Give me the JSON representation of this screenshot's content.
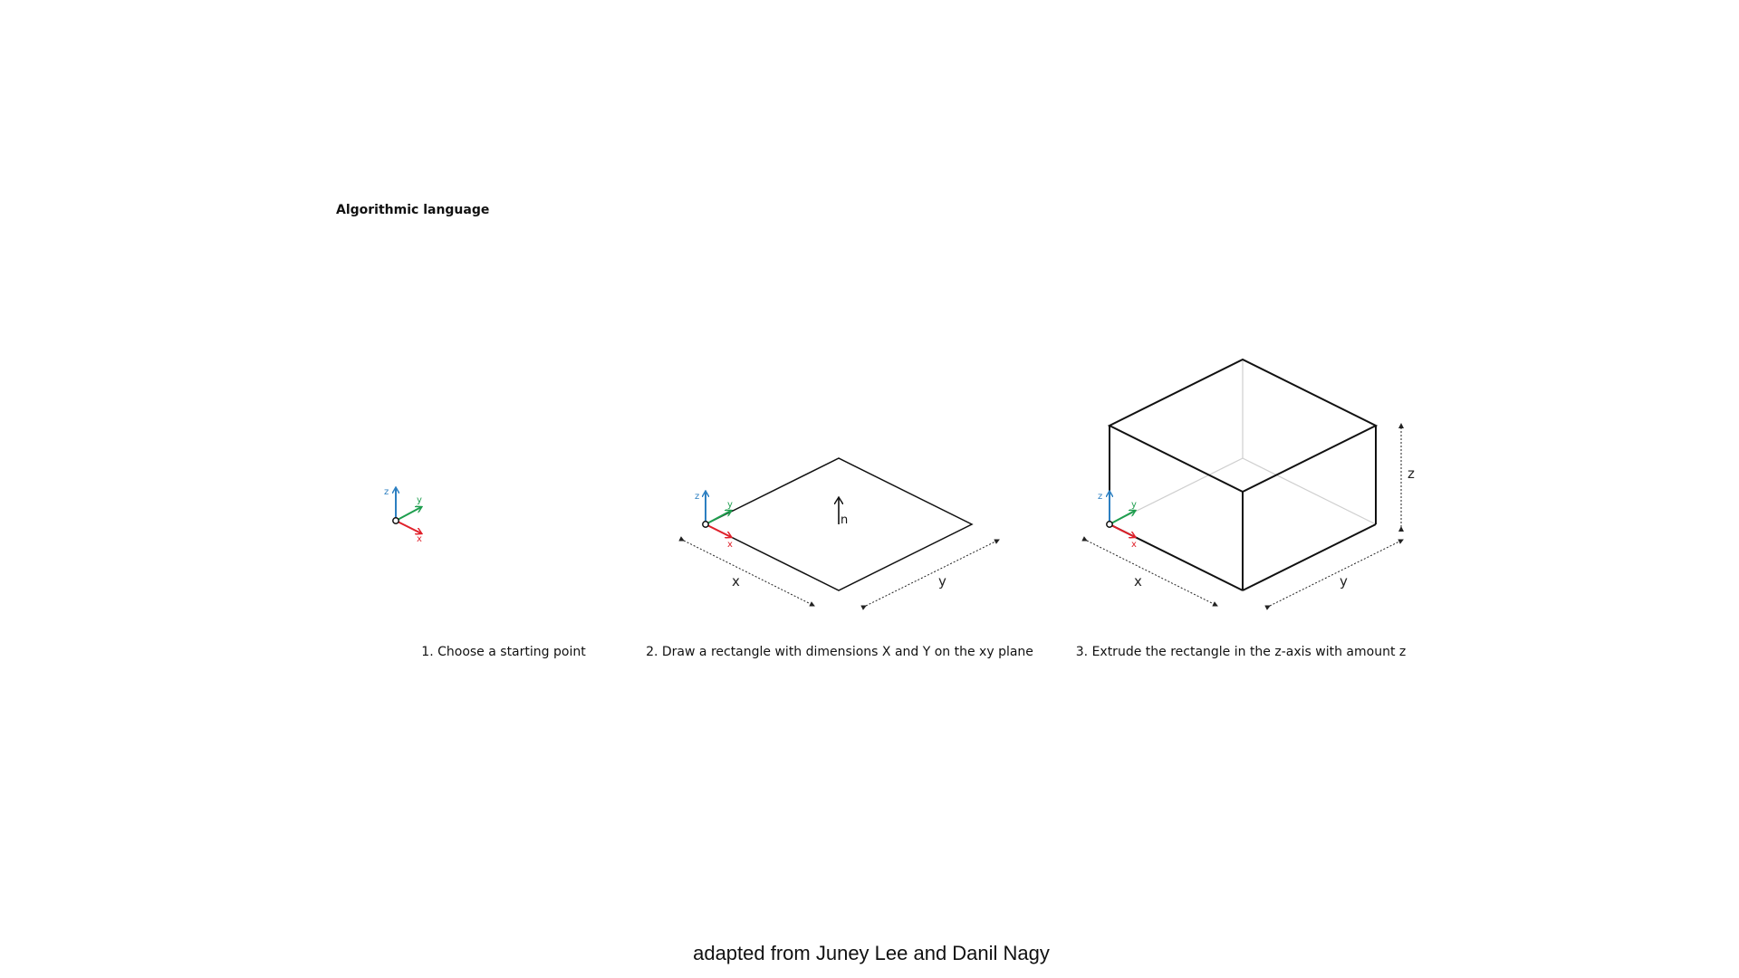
{
  "title": "Algorithmic language",
  "steps": [
    {
      "caption": "1. Choose a starting point"
    },
    {
      "caption": "2. Draw a rectangle with dimensions X and Y on the xy plane"
    },
    {
      "caption": "3. Extrude the rectangle in the z-axis with amount z"
    }
  ],
  "axes": {
    "x": "x",
    "y": "y",
    "z": "z"
  },
  "normal_label": "n",
  "dimension_labels": {
    "x": "x",
    "y": "y",
    "z": "z"
  },
  "colors": {
    "x_axis": "#e0202a",
    "y_axis": "#1e9e4e",
    "z_axis": "#2c7fc1"
  },
  "credit": "adapted from Juney Lee and Danil Nagy"
}
